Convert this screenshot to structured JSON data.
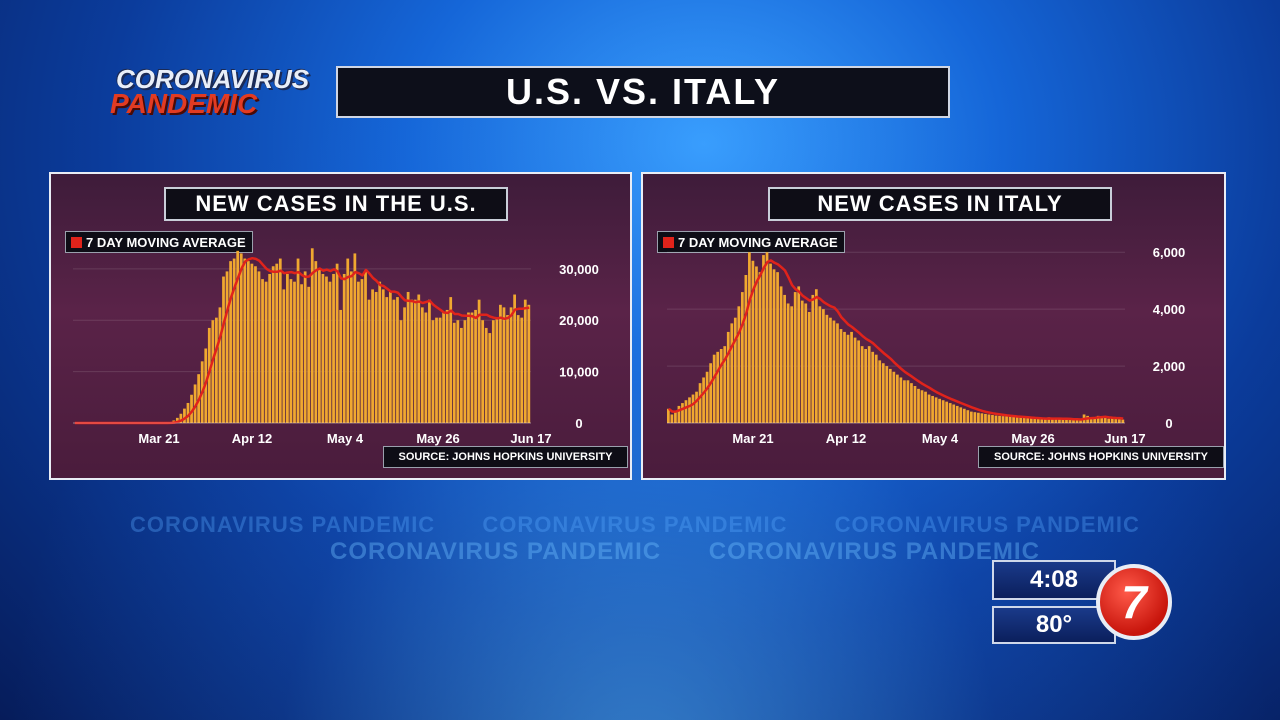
{
  "header": {
    "logo_line1": "CORONAVIRUS",
    "logo_line2": "PANDEMIC",
    "title": "U.S. VS. ITALY"
  },
  "watermark": {
    "text": "CORONAVIRUS PANDEMIC"
  },
  "station": {
    "time": "4:08",
    "temperature": "80°",
    "channel": "7"
  },
  "colors": {
    "bar": "#f0a830",
    "line": "#e0231b",
    "panel_bg": "#4a1c3c"
  },
  "panels": [
    {
      "title": "NEW CASES IN THE U.S.",
      "legend": "7 DAY MOVING AVERAGE",
      "source": "SOURCE: JOHNS HOPKINS UNIVERSITY"
    },
    {
      "title": "NEW CASES IN ITALY",
      "legend": "7 DAY MOVING AVERAGE",
      "source": "SOURCE: JOHNS HOPKINS UNIVERSITY"
    }
  ],
  "chart_data": [
    {
      "type": "bar",
      "title": "NEW CASES IN THE U.S.",
      "x_ticks": [
        "Mar 21",
        "Apr 12",
        "May 4",
        "May 26",
        "Jun 17"
      ],
      "y_ticks": [
        "0",
        "10,000",
        "20,000",
        "30,000"
      ],
      "ylim": [
        0,
        36000
      ],
      "legend": [
        "7 DAY MOVING AVERAGE"
      ],
      "values": [
        0,
        0,
        0,
        0,
        0,
        0,
        0,
        0,
        0,
        0,
        0,
        0,
        0,
        0,
        0,
        0,
        0,
        0,
        0,
        0,
        0,
        0,
        0,
        0,
        0,
        0,
        0,
        100,
        500,
        1000,
        1800,
        2800,
        3900,
        5500,
        7500,
        9500,
        12000,
        14500,
        18500,
        20000,
        20500,
        22500,
        28500,
        29500,
        31500,
        32000,
        33500,
        33000,
        32000,
        31500,
        31000,
        30500,
        29500,
        28000,
        27500,
        29000,
        30500,
        31000,
        32000,
        26000,
        29000,
        28000,
        27500,
        32000,
        27000,
        29500,
        26500,
        34000,
        31500,
        30000,
        29000,
        28500,
        27500,
        29000,
        31000,
        22000,
        29000,
        32000,
        29500,
        33000,
        27500,
        28000,
        29500,
        24000,
        26000,
        25500,
        27500,
        26000,
        24500,
        25500,
        24000,
        24500,
        20000,
        22500,
        25500,
        24000,
        24000,
        25000,
        22500,
        21500,
        24000,
        20000,
        20500,
        20500,
        21500,
        22000,
        24500,
        19500,
        20000,
        18500,
        20000,
        21500,
        21500,
        22000,
        24000,
        20000,
        18500,
        17500,
        20000,
        20500,
        23000,
        22500,
        21000,
        22500,
        25000,
        21000,
        20500,
        24000,
        23000
      ]
    },
    {
      "type": "bar",
      "title": "NEW CASES IN ITALY",
      "x_ticks": [
        "Mar 21",
        "Apr 12",
        "May 4",
        "May 26",
        "Jun 17"
      ],
      "y_ticks": [
        "0",
        "2,000",
        "4,000",
        "6,000"
      ],
      "ylim": [
        0,
        6500
      ],
      "legend": [
        "7 DAY MOVING AVERAGE"
      ],
      "values": [
        500,
        300,
        400,
        600,
        700,
        800,
        900,
        1000,
        1100,
        1400,
        1600,
        1800,
        2100,
        2400,
        2500,
        2600,
        2700,
        3200,
        3500,
        3700,
        4100,
        4600,
        5200,
        6000,
        5700,
        5500,
        5300,
        5900,
        6000,
        5600,
        5400,
        5300,
        4800,
        4500,
        4200,
        4100,
        4600,
        4800,
        4300,
        4200,
        3900,
        4500,
        4700,
        4100,
        4000,
        3800,
        3700,
        3600,
        3500,
        3300,
        3200,
        3100,
        3200,
        3000,
        2900,
        2700,
        2600,
        2700,
        2500,
        2400,
        2200,
        2100,
        2000,
        1900,
        1800,
        1700,
        1600,
        1500,
        1500,
        1400,
        1300,
        1200,
        1150,
        1100,
        1000,
        950,
        900,
        850,
        800,
        750,
        700,
        650,
        600,
        550,
        500,
        450,
        400,
        380,
        360,
        340,
        320,
        300,
        280,
        260,
        250,
        240,
        230,
        220,
        210,
        200,
        190,
        180,
        170,
        160,
        150,
        150,
        140,
        130,
        200,
        160,
        150,
        140,
        130,
        120,
        110,
        130,
        120,
        110,
        300,
        250,
        180,
        160,
        250,
        200,
        180,
        150,
        160,
        140,
        130,
        120
      ]
    }
  ]
}
